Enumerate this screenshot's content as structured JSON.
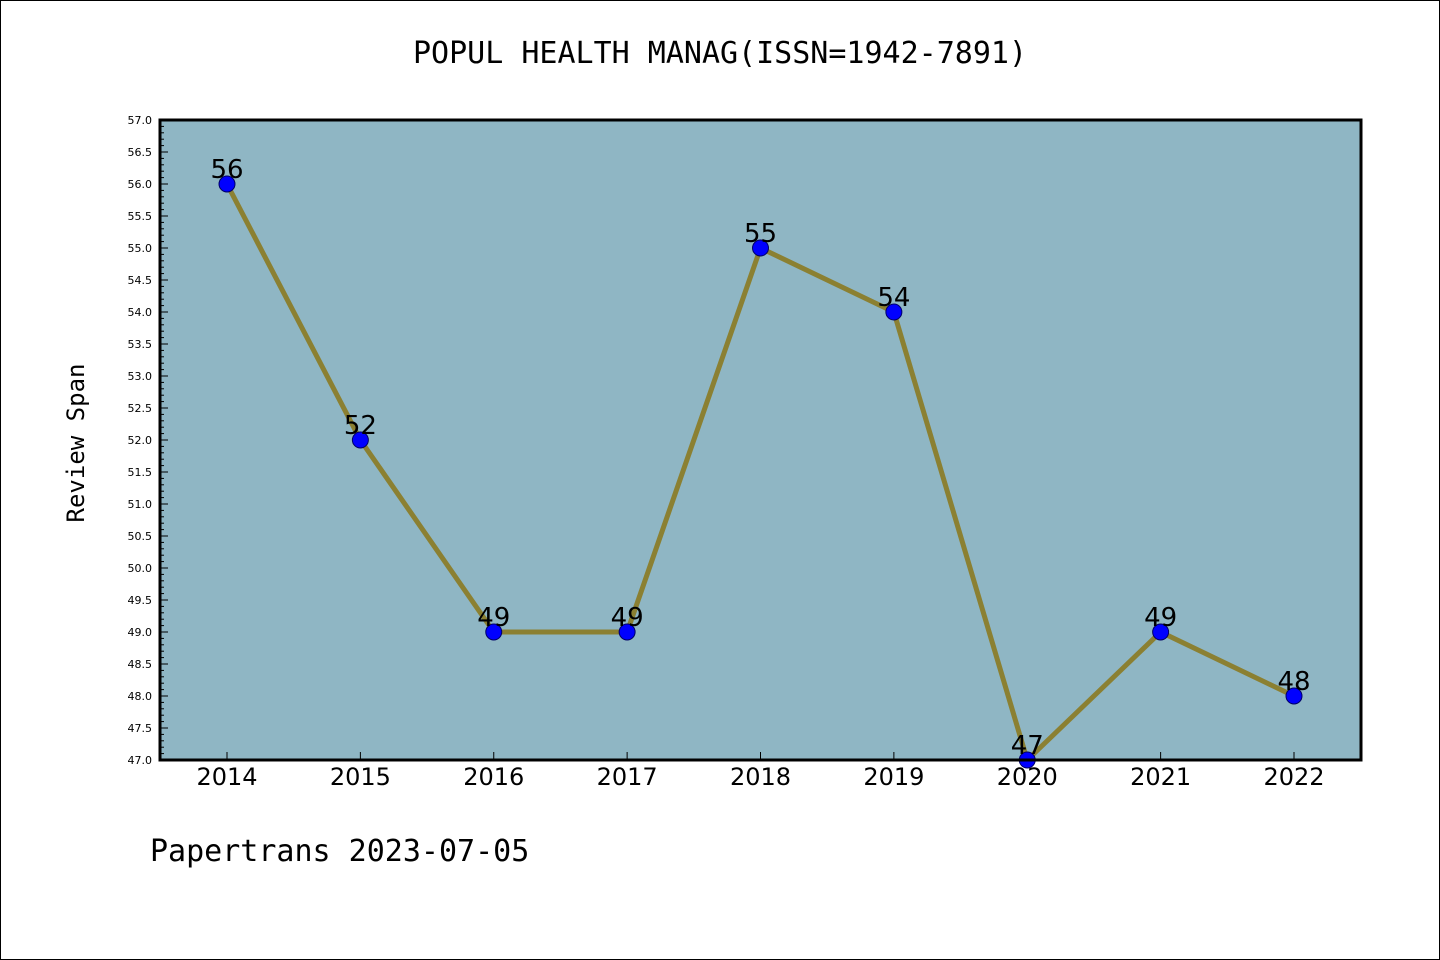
{
  "footer": {
    "text": "Papertrans 2023-07-05"
  },
  "colors": {
    "plot_background": "#8fb6c4",
    "line": "#8b8032",
    "marker": "#0000ff",
    "marker_edge": "#000066",
    "axis": "#000000"
  },
  "chart_data": {
    "type": "line",
    "title": "POPUL HEALTH MANAG(ISSN=1942-7891)",
    "xlabel": "",
    "ylabel": "Review Span",
    "categories": [
      "2014",
      "2015",
      "2016",
      "2017",
      "2018",
      "2019",
      "2020",
      "2021",
      "2022"
    ],
    "values": [
      56,
      52,
      49,
      49,
      55,
      54,
      47,
      49,
      48
    ],
    "data_labels": [
      "56",
      "52",
      "49",
      "49",
      "55",
      "54",
      "47",
      "49",
      "48"
    ],
    "ylim": [
      47.0,
      57.0
    ],
    "ytick_step": 0.5,
    "yticks": [
      "47.0",
      "47.5",
      "48.0",
      "48.5",
      "49.0",
      "49.5",
      "50.0",
      "50.5",
      "51.0",
      "51.5",
      "52.0",
      "52.5",
      "53.0",
      "53.5",
      "54.0",
      "54.5",
      "55.0",
      "55.5",
      "56.0",
      "56.5",
      "57.0"
    ],
    "grid": false,
    "legend": "none"
  }
}
